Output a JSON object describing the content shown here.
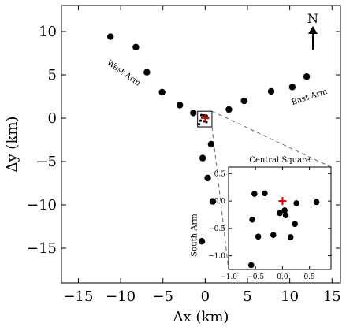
{
  "chart_data": {
    "type": "scatter",
    "main": {
      "xlabel": "Δx (km)",
      "ylabel": "Δy (km)",
      "xlim": [
        -17,
        16
      ],
      "ylim": [
        -19,
        13
      ],
      "x_ticks": [
        -15,
        -10,
        -5,
        0,
        5,
        10,
        15
      ],
      "x_tick_labels": [
        "−15",
        "−10",
        "−5",
        "0",
        "5",
        "10",
        "15"
      ],
      "y_ticks": [
        -15,
        -10,
        -5,
        0,
        5,
        10
      ],
      "y_tick_labels": [
        "−15",
        "−10",
        "−5",
        "0",
        "5",
        "10"
      ],
      "grid": false,
      "series": [
        {
          "marker": "circle",
          "color": "#000000",
          "points": [
            {
              "x": -11.2,
              "y": 9.4
            },
            {
              "x": -8.2,
              "y": 8.2
            },
            {
              "x": -6.9,
              "y": 5.3
            },
            {
              "x": -5.1,
              "y": 3.0
            },
            {
              "x": -3.0,
              "y": 1.5
            },
            {
              "x": -1.4,
              "y": 0.6
            },
            {
              "x": 2.8,
              "y": 1.0
            },
            {
              "x": 4.6,
              "y": 2.0
            },
            {
              "x": 7.8,
              "y": 3.1
            },
            {
              "x": 10.3,
              "y": 3.6
            },
            {
              "x": 12.0,
              "y": 4.8
            },
            {
              "x": 0.7,
              "y": -3.0
            },
            {
              "x": -0.3,
              "y": -4.6
            },
            {
              "x": 0.3,
              "y": -6.9
            },
            {
              "x": 0.9,
              "y": -9.6
            },
            {
              "x": -0.4,
              "y": -14.2
            }
          ]
        }
      ],
      "center_marker": {
        "x": 0.0,
        "y": 0.0,
        "color": "#cc0000"
      },
      "zoom_box": {
        "x0": -0.9,
        "x1": 0.8,
        "y0": -1.0,
        "y1": 0.8
      }
    },
    "annotations": [
      {
        "text": "West Arm",
        "x": -9.8,
        "y": 5.0,
        "rotation_deg": 35
      },
      {
        "text": "East Arm",
        "x": 12.4,
        "y": 2.2,
        "rotation_deg": -18
      },
      {
        "text": "South Arm",
        "x": -1.0,
        "y": -13.5,
        "rotation_deg": -90
      }
    ],
    "north_arrow": {
      "label": "N"
    },
    "inset": {
      "title": "Central Square",
      "xlim": [
        -1.0,
        0.9
      ],
      "ylim": [
        -1.25,
        0.62
      ],
      "x_ticks": [
        -1.0,
        -0.5,
        0.0,
        0.5
      ],
      "x_tick_labels": [
        "−1.0",
        "−0.5",
        "0.0",
        "0.5"
      ],
      "y_ticks": [
        -1.0,
        -0.5,
        0.0,
        0.5
      ],
      "y_tick_labels": [
        "−1.0",
        "−0.5",
        "0.0",
        "0.5"
      ],
      "series": [
        {
          "marker": "circle",
          "color": "#000000",
          "points": [
            {
              "x": -0.52,
              "y": 0.13
            },
            {
              "x": -0.33,
              "y": 0.14
            },
            {
              "x": -0.56,
              "y": -0.34
            },
            {
              "x": -0.45,
              "y": -0.65
            },
            {
              "x": -0.17,
              "y": -0.62
            },
            {
              "x": -0.05,
              "y": -0.22
            },
            {
              "x": 0.04,
              "y": -0.17
            },
            {
              "x": 0.06,
              "y": -0.26
            },
            {
              "x": 0.26,
              "y": -0.04
            },
            {
              "x": 0.23,
              "y": -0.42
            },
            {
              "x": 0.15,
              "y": -0.66
            },
            {
              "x": 0.63,
              "y": -0.02
            },
            {
              "x": -0.58,
              "y": -1.17
            }
          ]
        }
      ],
      "center_marker": {
        "x": 0.0,
        "y": 0.0,
        "color": "#cc0000"
      }
    }
  }
}
